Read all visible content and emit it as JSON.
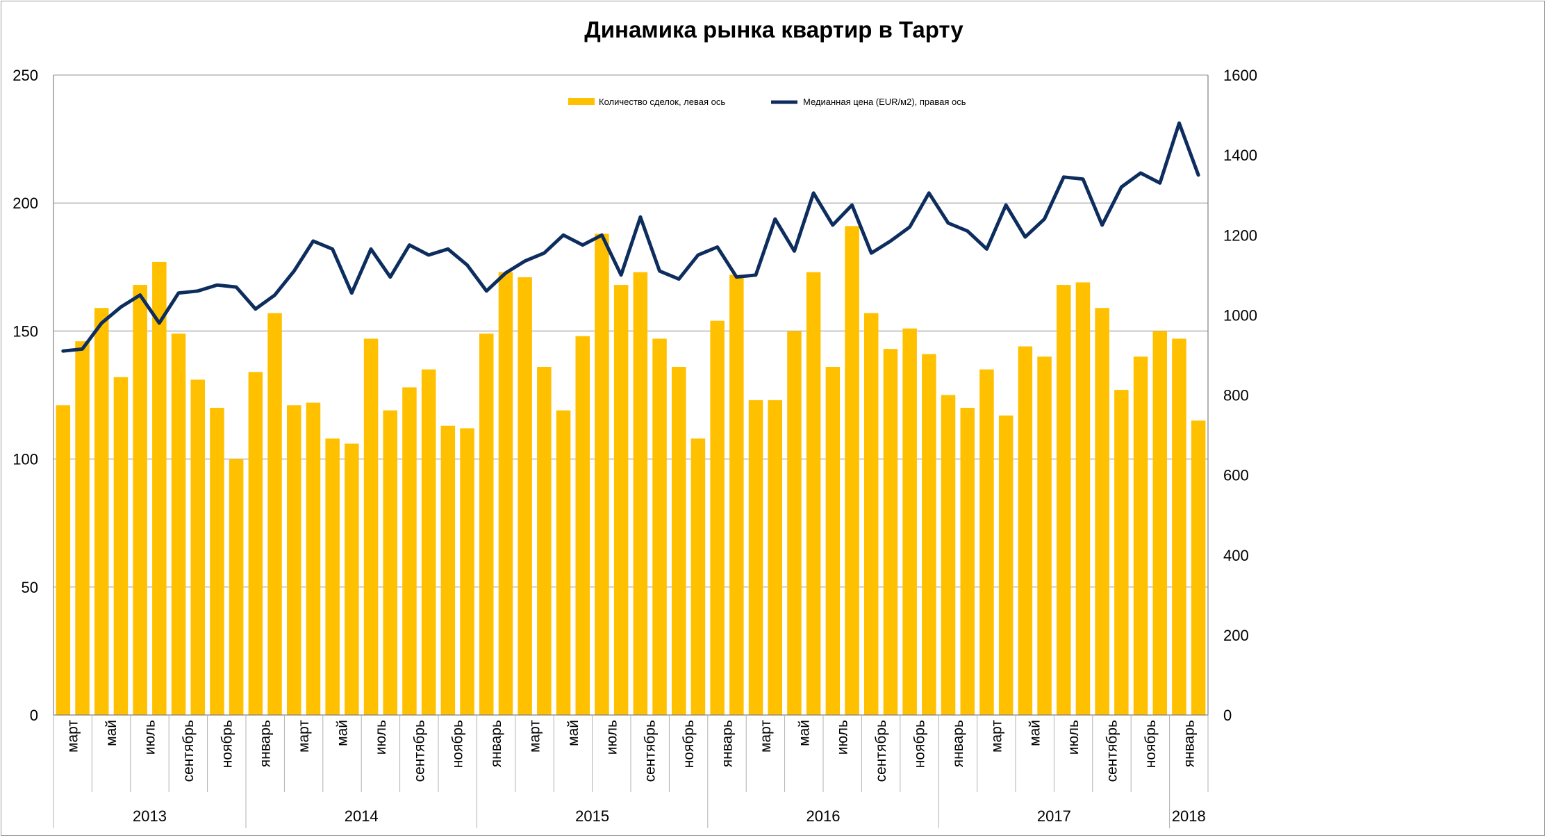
{
  "chart_data": {
    "type": "bar",
    "title": "Динамика рынка квартир в Тарту",
    "legend": {
      "placement": "top-center"
    },
    "grid": true,
    "colors": {
      "bars": "#FFC000",
      "line": "#0D2D5E",
      "grid": "#A6A6A6",
      "axis": "#808080"
    },
    "ylim_left": [
      0,
      250
    ],
    "yticks_left": [
      0,
      50,
      100,
      150,
      200,
      250
    ],
    "ylim_right": [
      0,
      1600
    ],
    "yticks_right": [
      0,
      200,
      400,
      600,
      800,
      1000,
      1200,
      1400,
      1600
    ],
    "x": [
      "2013-03",
      "2013-04",
      "2013-05",
      "2013-06",
      "2013-07",
      "2013-08",
      "2013-09",
      "2013-10",
      "2013-11",
      "2013-12",
      "2014-01",
      "2014-02",
      "2014-03",
      "2014-04",
      "2014-05",
      "2014-06",
      "2014-07",
      "2014-08",
      "2014-09",
      "2014-10",
      "2014-11",
      "2014-12",
      "2015-01",
      "2015-02",
      "2015-03",
      "2015-04",
      "2015-05",
      "2015-06",
      "2015-07",
      "2015-08",
      "2015-09",
      "2015-10",
      "2015-11",
      "2015-12",
      "2016-01",
      "2016-02",
      "2016-03",
      "2016-04",
      "2016-05",
      "2016-06",
      "2016-07",
      "2016-08",
      "2016-09",
      "2016-10",
      "2016-11",
      "2016-12",
      "2017-01",
      "2017-02",
      "2017-03",
      "2017-04",
      "2017-05",
      "2017-06",
      "2017-07",
      "2017-08",
      "2017-09",
      "2017-10",
      "2017-11",
      "2017-12",
      "2018-01",
      "2018-02"
    ],
    "category_labels": [
      "март",
      "",
      "май",
      "",
      "июль",
      "",
      "сентябрь",
      "",
      "ноябрь",
      "",
      "январь",
      "",
      "март",
      "",
      "май",
      "",
      "июль",
      "",
      "сентябрь",
      "",
      "ноябрь",
      "",
      "январь",
      "",
      "март",
      "",
      "май",
      "",
      "июль",
      "",
      "сентябрь",
      "",
      "ноябрь",
      "",
      "январь",
      "",
      "март",
      "",
      "май",
      "",
      "июль",
      "",
      "сентябрь",
      "",
      "ноябрь",
      "",
      "январь",
      "",
      "март",
      "",
      "май",
      "",
      "июль",
      "",
      "сентябрь",
      "",
      "ноябрь",
      "",
      "январь",
      ""
    ],
    "years": [
      {
        "label": "2013",
        "start": 0,
        "end": 9
      },
      {
        "label": "2014",
        "start": 10,
        "end": 21
      },
      {
        "label": "2015",
        "start": 22,
        "end": 33
      },
      {
        "label": "2016",
        "start": 34,
        "end": 45
      },
      {
        "label": "2017",
        "start": 46,
        "end": 57
      },
      {
        "label": "2018",
        "start": 58,
        "end": 59
      }
    ],
    "series": [
      {
        "name": "Количество сделок,  левая ось",
        "type": "bar",
        "axis": "left",
        "values": [
          121,
          146,
          159,
          132,
          168,
          177,
          149,
          131,
          120,
          100,
          134,
          157,
          121,
          122,
          108,
          106,
          147,
          119,
          128,
          135,
          113,
          112,
          149,
          173,
          171,
          136,
          119,
          148,
          188,
          168,
          173,
          147,
          136,
          108,
          154,
          172,
          123,
          123,
          150,
          173,
          136,
          191,
          157,
          143,
          151,
          141,
          125,
          120,
          135,
          117,
          144,
          140,
          168,
          169,
          159,
          127,
          140,
          150,
          147,
          115
        ]
      },
      {
        "name": "Медианная цена (EUR/м2), правая ось",
        "type": "line",
        "axis": "right",
        "values": [
          910,
          915,
          980,
          1020,
          1050,
          980,
          1055,
          1060,
          1075,
          1070,
          1015,
          1050,
          1110,
          1185,
          1165,
          1055,
          1165,
          1095,
          1175,
          1150,
          1165,
          1125,
          1060,
          1105,
          1135,
          1155,
          1200,
          1175,
          1200,
          1100,
          1245,
          1110,
          1090,
          1150,
          1170,
          1095,
          1100,
          1240,
          1160,
          1305,
          1225,
          1275,
          1155,
          1185,
          1220,
          1305,
          1230,
          1210,
          1165,
          1275,
          1195,
          1240,
          1345,
          1340,
          1225,
          1320,
          1355,
          1330,
          1480,
          1350
        ]
      }
    ]
  }
}
